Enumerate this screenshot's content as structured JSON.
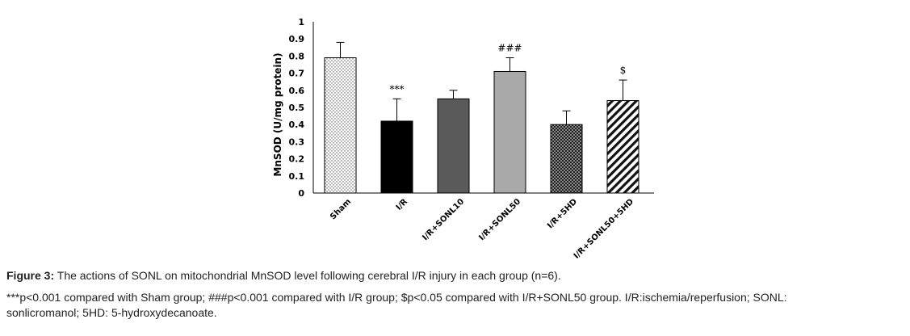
{
  "chart_data": {
    "type": "bar",
    "ylabel": "MnSOD (U/mg protein)",
    "ylim": [
      0,
      1
    ],
    "yticks": [
      "0",
      "0.1",
      "0.2",
      "0.3",
      "0.4",
      "0.5",
      "0.6",
      "0.7",
      "0.8",
      "0.9",
      "1"
    ],
    "grid": false,
    "categories": [
      "Sham",
      "I/R",
      "I/R+SONL10",
      "I/R+SONL50",
      "I/R+5HD",
      "I/R+SONL50+5HD"
    ],
    "values": [
      0.79,
      0.42,
      0.55,
      0.71,
      0.4,
      0.54
    ],
    "errors": [
      0.09,
      0.13,
      0.05,
      0.08,
      0.08,
      0.12
    ],
    "annotations": [
      "",
      "***",
      "",
      "###",
      "",
      "$"
    ],
    "fills": [
      "dots",
      "black",
      "dark-gray",
      "light-gray",
      "dense-dots",
      "diagonal-stripes"
    ]
  },
  "caption": {
    "label": "Figure 3:",
    "title": " The actions of SONL on mitochondrial MnSOD level following cerebral I/R injury in each group (n=6).",
    "line1": "***p<0.001 compared with Sham group; ###p<0.001 compared with I/R group; $p<0.05 compared with I/R+SONL50 group. I/R:ischemia/reperfusion; SONL:",
    "line2": "sonlicromanol; 5HD: 5-hydroxydecanoate."
  }
}
